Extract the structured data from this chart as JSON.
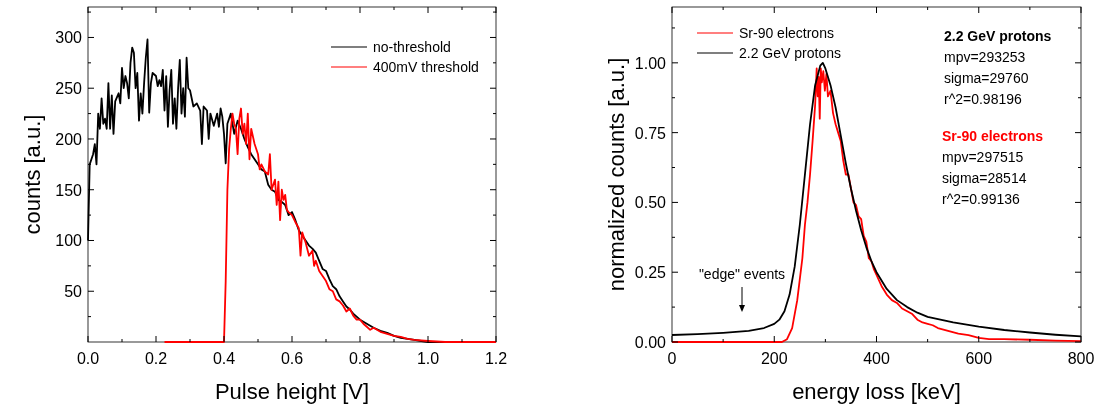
{
  "chart_data": [
    {
      "type": "line",
      "xlabel": "Pulse height [V]",
      "ylabel": "counts [a.u.]",
      "xlim": [
        0,
        1.2
      ],
      "ylim": [
        0,
        330
      ],
      "xticks": [
        {
          "value": 0,
          "label": "0.0"
        },
        {
          "value": 0.1,
          "label": null
        },
        {
          "value": 0.2,
          "label": "0.2"
        },
        {
          "value": 0.3,
          "label": null
        },
        {
          "value": 0.4,
          "label": "0.4"
        },
        {
          "value": 0.5,
          "label": null
        },
        {
          "value": 0.6,
          "label": "0.6"
        },
        {
          "value": 0.7,
          "label": null
        },
        {
          "value": 0.8,
          "label": "0.8"
        },
        {
          "value": 0.9,
          "label": null
        },
        {
          "value": 1,
          "label": "1.0"
        },
        {
          "value": 1.1,
          "label": null
        },
        {
          "value": 1.2,
          "label": "1.2"
        }
      ],
      "yticks": [
        {
          "value": 25,
          "label": null
        },
        50,
        {
          "value": 75,
          "label": null
        },
        100,
        {
          "value": 125,
          "label": null
        },
        150,
        {
          "value": 175,
          "label": null
        },
        200,
        {
          "value": 225,
          "label": null
        },
        250,
        {
          "value": 275,
          "label": null
        },
        300,
        {
          "value": 325,
          "label": null
        }
      ],
      "legend": "top right",
      "grid": false,
      "marker": "none",
      "line_style": "solid",
      "series": [
        {
          "name": "no-threshold",
          "color": "#000000",
          "x": [
            0,
            0.005,
            0.015,
            0.02,
            0.025,
            0.03,
            0.035,
            0.04,
            0.045,
            0.05,
            0.055,
            0.06,
            0.065,
            0.07,
            0.075,
            0.08,
            0.09,
            0.095,
            0.1,
            0.105,
            0.11,
            0.115,
            0.12,
            0.125,
            0.13,
            0.135,
            0.14,
            0.145,
            0.15,
            0.155,
            0.16,
            0.165,
            0.17,
            0.175,
            0.18,
            0.185,
            0.19,
            0.2,
            0.205,
            0.21,
            0.215,
            0.22,
            0.225,
            0.23,
            0.235,
            0.24,
            0.245,
            0.25,
            0.255,
            0.26,
            0.265,
            0.27,
            0.275,
            0.28,
            0.285,
            0.29,
            0.295,
            0.3,
            0.31,
            0.32,
            0.33,
            0.335,
            0.34,
            0.35,
            0.355,
            0.36,
            0.37,
            0.38,
            0.385,
            0.39,
            0.395,
            0.4,
            0.405,
            0.41,
            0.42,
            0.43,
            0.44,
            0.45,
            0.46,
            0.47,
            0.48,
            0.49,
            0.5,
            0.51,
            0.52,
            0.53,
            0.54,
            0.55,
            0.56,
            0.57,
            0.58,
            0.59,
            0.6,
            0.61,
            0.62,
            0.63,
            0.64,
            0.65,
            0.66,
            0.67,
            0.68,
            0.69,
            0.7,
            0.71,
            0.72,
            0.73,
            0.74,
            0.75,
            0.76,
            0.77,
            0.78,
            0.79,
            0.8,
            0.82,
            0.84,
            0.86,
            0.88,
            0.9,
            0.92,
            0.94,
            0.96,
            0.98,
            1,
            1.05
          ],
          "values": [
            100,
            175,
            185,
            195,
            175,
            225,
            210,
            240,
            215,
            220,
            210,
            255,
            210,
            243,
            205,
            237,
            245,
            235,
            270,
            250,
            262,
            255,
            240,
            275,
            290,
            285,
            250,
            265,
            218,
            245,
            225,
            255,
            280,
            298,
            226,
            255,
            265,
            262,
            252,
            258,
            252,
            268,
            228,
            262,
            212,
            248,
            268,
            215,
            240,
            210,
            250,
            278,
            225,
            250,
            222,
            280,
            250,
            248,
            232,
            235,
            228,
            195,
            232,
            228,
            200,
            225,
            213,
            225,
            212,
            230,
            222,
            205,
            176,
            215,
            225,
            205,
            218,
            210,
            200,
            192,
            185,
            180,
            175,
            170,
            168,
            155,
            150,
            148,
            140,
            138,
            135,
            125,
            128,
            120,
            110,
            105,
            100,
            95,
            92,
            88,
            80,
            72,
            70,
            62,
            55,
            52,
            45,
            40,
            35,
            32,
            28,
            25,
            22,
            18,
            14,
            11,
            9,
            6,
            4,
            3,
            2,
            1,
            0,
            0
          ]
        },
        {
          "name": "400mV threshold",
          "color": "#ff0000",
          "x": [
            0.225,
            0.4,
            0.405,
            0.41,
            0.415,
            0.42,
            0.425,
            0.43,
            0.435,
            0.44,
            0.445,
            0.45,
            0.455,
            0.46,
            0.465,
            0.47,
            0.475,
            0.48,
            0.49,
            0.5,
            0.505,
            0.51,
            0.52,
            0.53,
            0.535,
            0.54,
            0.55,
            0.555,
            0.56,
            0.565,
            0.57,
            0.575,
            0.58,
            0.585,
            0.59,
            0.6,
            0.61,
            0.62,
            0.625,
            0.63,
            0.64,
            0.65,
            0.66,
            0.665,
            0.67,
            0.68,
            0.69,
            0.7,
            0.71,
            0.72,
            0.73,
            0.74,
            0.75,
            0.76,
            0.77,
            0.78,
            0.79,
            0.8,
            0.81,
            0.82,
            0.83,
            0.84,
            0.86,
            0.88,
            0.9,
            0.92,
            0.94,
            0.96,
            1,
            1.05,
            1.2
          ],
          "values": [
            0,
            0,
            60,
            150,
            190,
            210,
            225,
            215,
            210,
            185,
            220,
            230,
            205,
            215,
            195,
            225,
            180,
            210,
            195,
            185,
            170,
            175,
            168,
            165,
            185,
            150,
            160,
            135,
            158,
            120,
            150,
            140,
            145,
            130,
            128,
            125,
            118,
            112,
            85,
            108,
            98,
            85,
            90,
            75,
            80,
            70,
            65,
            60,
            52,
            50,
            42,
            40,
            36,
            30,
            33,
            26,
            22,
            22,
            18,
            15,
            12,
            14,
            10,
            8,
            6,
            5,
            3,
            2,
            1,
            0,
            0
          ]
        }
      ]
    },
    {
      "type": "line",
      "xlabel": "energy loss [keV]",
      "ylabel": "normalized counts [a.u.]",
      "xlim": [
        0,
        800
      ],
      "ylim": [
        0,
        1.2
      ],
      "xticks": [
        0,
        {
          "value": 100,
          "label": null
        },
        200,
        {
          "value": 300,
          "label": null
        },
        400,
        {
          "value": 500,
          "label": null
        },
        600,
        {
          "value": 700,
          "label": null
        },
        800
      ],
      "yticks": [
        {
          "value": 0,
          "label": "0.00"
        },
        {
          "value": 0.125,
          "label": null
        },
        {
          "value": 0.25,
          "label": "0.25"
        },
        {
          "value": 0.375,
          "label": null
        },
        {
          "value": 0.5,
          "label": "0.50"
        },
        {
          "value": 0.625,
          "label": null
        },
        {
          "value": 0.75,
          "label": "0.75"
        },
        {
          "value": 0.875,
          "label": null
        },
        {
          "value": 1,
          "label": "1.00"
        },
        {
          "value": 1.125,
          "label": null
        }
      ],
      "legend": "top left",
      "grid": false,
      "marker": "none",
      "line_style": "solid",
      "annotations": [
        "2.2 GeV protons",
        "mpv=293253",
        "sigma=29760",
        "r^2=0.98196",
        "Sr-90 electrons",
        "mpv=297515",
        "sigma=28514",
        "r^2=0.99136",
        "\"edge\" events"
      ],
      "series": [
        {
          "name": "Sr-90 electrons",
          "color": "#ff0000",
          "x": [
            0,
            215,
            225,
            235,
            245,
            255,
            260,
            265,
            270,
            275,
            280,
            283,
            285,
            287,
            289,
            291,
            293,
            296,
            299,
            302,
            305,
            310,
            315,
            320,
            325,
            330,
            335,
            340,
            345,
            350,
            355,
            360,
            365,
            370,
            375,
            380,
            385,
            390,
            395,
            400,
            410,
            420,
            430,
            440,
            450,
            460,
            470,
            480,
            490,
            500,
            510,
            520,
            540,
            560,
            580,
            600,
            620,
            650,
            700,
            750,
            800
          ],
          "values": [
            0,
            0,
            0.01,
            0.05,
            0.15,
            0.3,
            0.42,
            0.5,
            0.6,
            0.72,
            0.85,
            0.98,
            0.88,
            0.95,
            0.8,
            0.98,
            0.93,
            0.97,
            0.9,
            0.96,
            0.88,
            0.9,
            0.82,
            0.78,
            0.75,
            0.72,
            0.65,
            0.6,
            0.6,
            0.55,
            0.5,
            0.49,
            0.45,
            0.44,
            0.38,
            0.36,
            0.3,
            0.29,
            0.26,
            0.24,
            0.2,
            0.17,
            0.15,
            0.14,
            0.12,
            0.11,
            0.1,
            0.08,
            0.07,
            0.065,
            0.06,
            0.05,
            0.04,
            0.03,
            0.025,
            0.015,
            0.01,
            0.01,
            0.008,
            0.005,
            0.003
          ]
        },
        {
          "name": "2.2 GeV protons",
          "color": "#000000",
          "x": [
            0,
            50,
            100,
            150,
            180,
            200,
            210,
            220,
            230,
            240,
            250,
            260,
            270,
            280,
            290,
            295,
            300,
            310,
            320,
            330,
            340,
            350,
            360,
            370,
            380,
            390,
            400,
            420,
            440,
            460,
            480,
            500,
            550,
            600,
            650,
            700,
            750,
            800
          ],
          "values": [
            0.025,
            0.028,
            0.033,
            0.04,
            0.05,
            0.065,
            0.08,
            0.11,
            0.17,
            0.27,
            0.42,
            0.6,
            0.78,
            0.92,
            0.99,
            1,
            0.98,
            0.92,
            0.84,
            0.74,
            0.64,
            0.55,
            0.47,
            0.4,
            0.34,
            0.29,
            0.25,
            0.19,
            0.15,
            0.125,
            0.105,
            0.09,
            0.07,
            0.055,
            0.043,
            0.034,
            0.026,
            0.02
          ]
        }
      ]
    }
  ]
}
